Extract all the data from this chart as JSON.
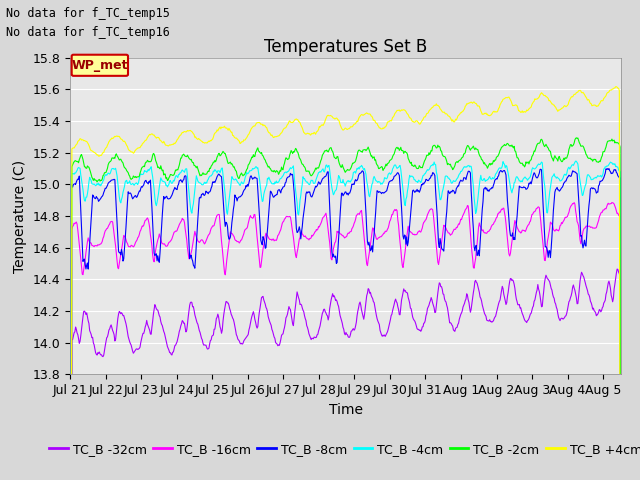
{
  "title": "Temperatures Set B",
  "xlabel": "Time",
  "ylabel": "Temperature (C)",
  "ylim": [
    13.8,
    15.8
  ],
  "xlim_days": 15.5,
  "x_tick_labels": [
    "Jul 21",
    "Jul 22",
    "Jul 23",
    "Jul 24",
    "Jul 25",
    "Jul 26",
    "Jul 27",
    "Jul 28",
    "Jul 29",
    "Jul 30",
    "Jul 31",
    "Aug 1",
    "Aug 2",
    "Aug 3",
    "Aug 4",
    "Aug 5"
  ],
  "series_labels": [
    "TC_B -32cm",
    "TC_B -16cm",
    "TC_B -8cm",
    "TC_B -4cm",
    "TC_B -2cm",
    "TC_B +4cm"
  ],
  "series_colors": [
    "#AA00FF",
    "#FF00FF",
    "#0000FF",
    "#00FFFF",
    "#00FF00",
    "#FFFF00"
  ],
  "legend_text_lines": [
    "No data for f_TC_temp15",
    "No data for f_TC_temp16"
  ],
  "wp_met_label": "WP_met",
  "background_color": "#D8D8D8",
  "plot_bg_color": "#E8E8E8",
  "grid_color": "#FFFFFF",
  "title_fontsize": 12,
  "label_fontsize": 10,
  "tick_fontsize": 9,
  "legend_fontsize": 9
}
